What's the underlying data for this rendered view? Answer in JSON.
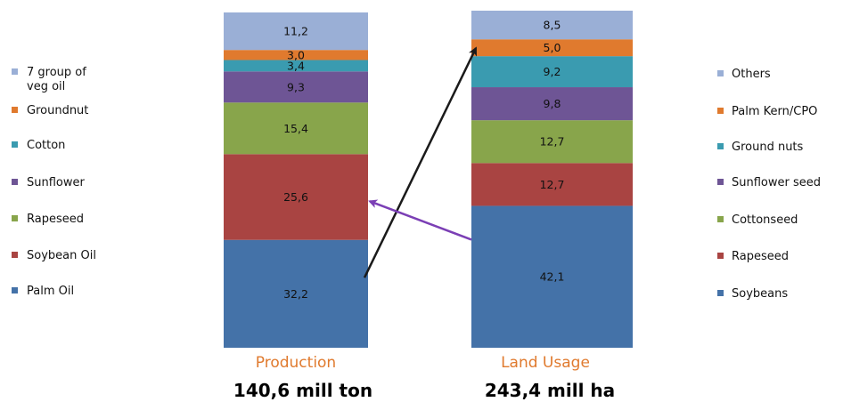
{
  "chart_data": {
    "type": "bar",
    "stacked": true,
    "categories": [
      "Production",
      "Land Usage"
    ],
    "totals": [
      "140,6 mill ton",
      "243,4 mill ha"
    ],
    "series_production": [
      {
        "name": "Palm Oil",
        "value": 32.2,
        "label": "32,2",
        "color": "#4472A8"
      },
      {
        "name": "Soybean Oil",
        "value": 25.6,
        "label": "25,6",
        "color": "#A94442"
      },
      {
        "name": "Rapeseed",
        "value": 15.4,
        "label": "15,4",
        "color": "#88A54B"
      },
      {
        "name": "Sunflower",
        "value": 9.3,
        "label": "9,3",
        "color": "#6E5595"
      },
      {
        "name": "Cotton",
        "value": 3.4,
        "label": "3,4",
        "color": "#3A9BB0"
      },
      {
        "name": "Groundnut",
        "value": 3.0,
        "label": "3,0",
        "color": "#E07A2E"
      },
      {
        "name": "7 group of veg oil",
        "value": 11.2,
        "label": "11,2",
        "color": "#9AAFD6"
      }
    ],
    "series_land": [
      {
        "name": "Soybeans",
        "value": 42.1,
        "label": "42,1",
        "color": "#4472A8"
      },
      {
        "name": "Rapeseed",
        "value": 12.7,
        "label": "12,7",
        "color": "#A94442"
      },
      {
        "name": "Cottonseed",
        "value": 12.7,
        "label": "12,7",
        "color": "#88A54B"
      },
      {
        "name": "Sunflower seed",
        "value": 9.8,
        "label": "9,8",
        "color": "#6E5595"
      },
      {
        "name": "Ground nuts",
        "value": 9.2,
        "label": "9,2",
        "color": "#3A9BB0"
      },
      {
        "name": "Palm Kern/CPO",
        "value": 5.0,
        "label": "5,0",
        "color": "#E07A2E"
      },
      {
        "name": "Others",
        "value": 8.5,
        "label": "8,5",
        "color": "#9AAFD6"
      }
    ],
    "legend_left": [
      {
        "lines": [
          "7 group of",
          "veg oil"
        ],
        "color": "#9AAFD6"
      },
      {
        "lines": [
          "Groundnut"
        ],
        "color": "#E07A2E"
      },
      {
        "lines": [
          "Cotton"
        ],
        "color": "#3A9BB0"
      },
      {
        "lines": [
          "Sunflower"
        ],
        "color": "#6E5595"
      },
      {
        "lines": [
          "Rapeseed"
        ],
        "color": "#88A54B"
      },
      {
        "lines": [
          "Soybean Oil"
        ],
        "color": "#A94442"
      },
      {
        "lines": [
          "Palm Oil"
        ],
        "color": "#4472A8"
      }
    ],
    "legend_right": [
      {
        "lines": [
          "Others"
        ],
        "color": "#9AAFD6"
      },
      {
        "lines": [
          "Palm Kern/CPO"
        ],
        "color": "#E07A2E"
      },
      {
        "lines": [
          "Ground nuts"
        ],
        "color": "#3A9BB0"
      },
      {
        "lines": [
          "Sunflower seed"
        ],
        "color": "#6E5595"
      },
      {
        "lines": [
          "Cottonseed"
        ],
        "color": "#88A54B"
      },
      {
        "lines": [
          "Rapeseed"
        ],
        "color": "#A94442"
      },
      {
        "lines": [
          "Soybeans"
        ],
        "color": "#4472A8"
      }
    ],
    "arrows": [
      {
        "from": "Palm Oil",
        "to": "Palm Kern/CPO",
        "color": "#1A1A1A"
      },
      {
        "from": "Soybeans",
        "to": "Soybean Oil",
        "color": "#7B3FB5"
      }
    ],
    "legend_left_placement": "left",
    "legend_right_placement": "right",
    "grid": false
  }
}
